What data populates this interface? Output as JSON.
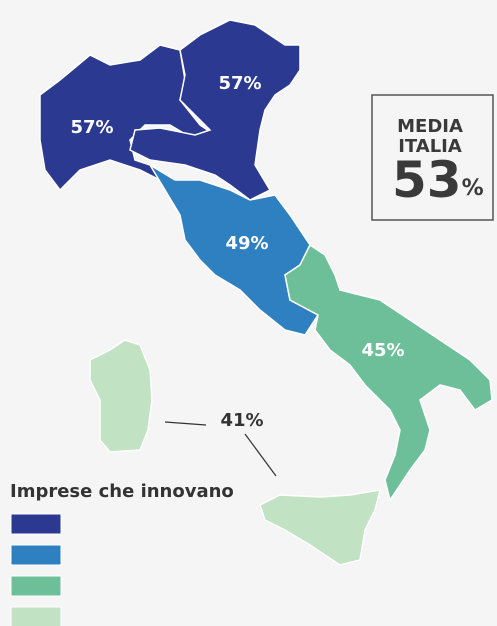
{
  "map": {
    "regions": [
      {
        "value": 57,
        "label": "57%",
        "color": "#2b3990"
      },
      {
        "value": 57,
        "label": "57%",
        "color": "#2b3990"
      },
      {
        "value": 49,
        "label": "49%",
        "color": "#2e80c0"
      },
      {
        "value": 45,
        "label": "45%",
        "color": "#6cbf98"
      },
      {
        "value": 41,
        "label": "41%",
        "color": "#c2e2c4"
      }
    ],
    "media": {
      "title": [
        "MEDIA",
        "ITALIA"
      ],
      "value": 53,
      "unit": "%"
    },
    "legend": {
      "title": "Imprese che innovano",
      "colors": [
        "#2b3990",
        "#2e80c0",
        "#6cbf98",
        "#c2e2c4"
      ]
    }
  }
}
